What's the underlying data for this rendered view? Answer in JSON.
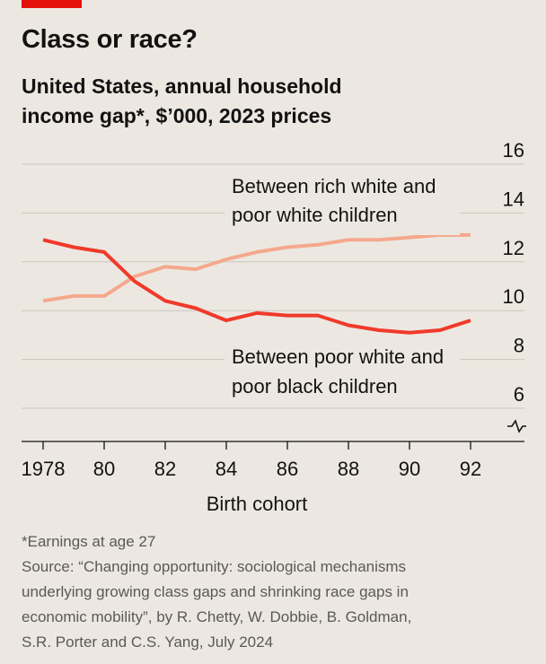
{
  "title": "Class or race?",
  "subtitle_lines": [
    "United States, annual household",
    "income gap*, $’000, 2023 prices"
  ],
  "colors": {
    "accent": "#e3120b",
    "series_dark": "#f03a2a",
    "series_light": "#f5a88d",
    "grid": "#c9c5be",
    "background": "#ece8e1"
  },
  "chart_data": {
    "type": "line",
    "x": [
      1978,
      1979,
      1980,
      1981,
      1982,
      1983,
      1984,
      1985,
      1986,
      1987,
      1988,
      1989,
      1990,
      1991,
      1992
    ],
    "x_tick_values": [
      1978,
      1980,
      1982,
      1984,
      1986,
      1988,
      1990,
      1992
    ],
    "x_tick_labels": [
      "1978",
      "80",
      "82",
      "84",
      "86",
      "88",
      "90",
      "92"
    ],
    "xlabel": "Birth cohort",
    "y_tick_values": [
      6,
      8,
      10,
      12,
      14,
      16
    ],
    "y_tick_labels": [
      "6",
      "8",
      "10",
      "12",
      "14",
      "16"
    ],
    "ylim": [
      4.5,
      16
    ],
    "y_axis_break": true,
    "grid": true,
    "series": [
      {
        "name_lines": [
          "Between rich white and",
          "poor white children"
        ],
        "color": "#f5a88d",
        "values": [
          10.4,
          10.6,
          10.6,
          11.4,
          11.8,
          11.7,
          12.1,
          12.4,
          12.6,
          12.7,
          12.9,
          12.9,
          13.0,
          13.1,
          13.1
        ]
      },
      {
        "name_lines": [
          "Between poor white and",
          "poor black children"
        ],
        "color": "#f03a2a",
        "values": [
          12.9,
          12.6,
          12.4,
          11.2,
          10.4,
          10.1,
          9.6,
          9.9,
          9.8,
          9.8,
          9.4,
          9.2,
          9.1,
          9.2,
          9.6
        ]
      }
    ]
  },
  "footnote_lines": [
    "*Earnings at age 27",
    "Source: “Changing opportunity: sociological mechanisms",
    "underlying growing class gaps and shrinking race gaps in",
    "economic mobility”, by R. Chetty, W. Dobbie, B. Goldman,",
    "S.R. Porter and C.S. Yang, July 2024"
  ]
}
